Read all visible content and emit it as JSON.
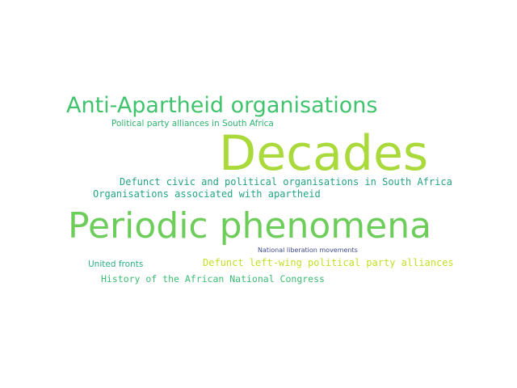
{
  "words": [
    {
      "id": "w-anti",
      "text": "Anti-Apartheid organisations",
      "color": "#3fc46d"
    },
    {
      "id": "w-ppa",
      "text": "Political party alliances in South Africa",
      "color": "#2eb36f"
    },
    {
      "id": "w-decades",
      "text": "Decades",
      "color": "#a9d93a"
    },
    {
      "id": "w-dcpo",
      "text": "Defunct civic and political organisations in South Africa",
      "color": "#25a382"
    },
    {
      "id": "w-oaa",
      "text": "Organisations associated with apartheid",
      "color": "#23a486"
    },
    {
      "id": "w-pp",
      "text": "Periodic phenomena",
      "color": "#6ccd5a"
    },
    {
      "id": "w-nlm",
      "text": "National liberation movements",
      "color": "#404c8b"
    },
    {
      "id": "w-uf",
      "text": "United fronts",
      "color": "#2bb07f"
    },
    {
      "id": "w-dlw",
      "text": "Defunct left-wing political party alliances",
      "color": "#c2df23"
    },
    {
      "id": "w-hanc",
      "text": "History of the African National Congress",
      "color": "#3dbc74"
    }
  ]
}
